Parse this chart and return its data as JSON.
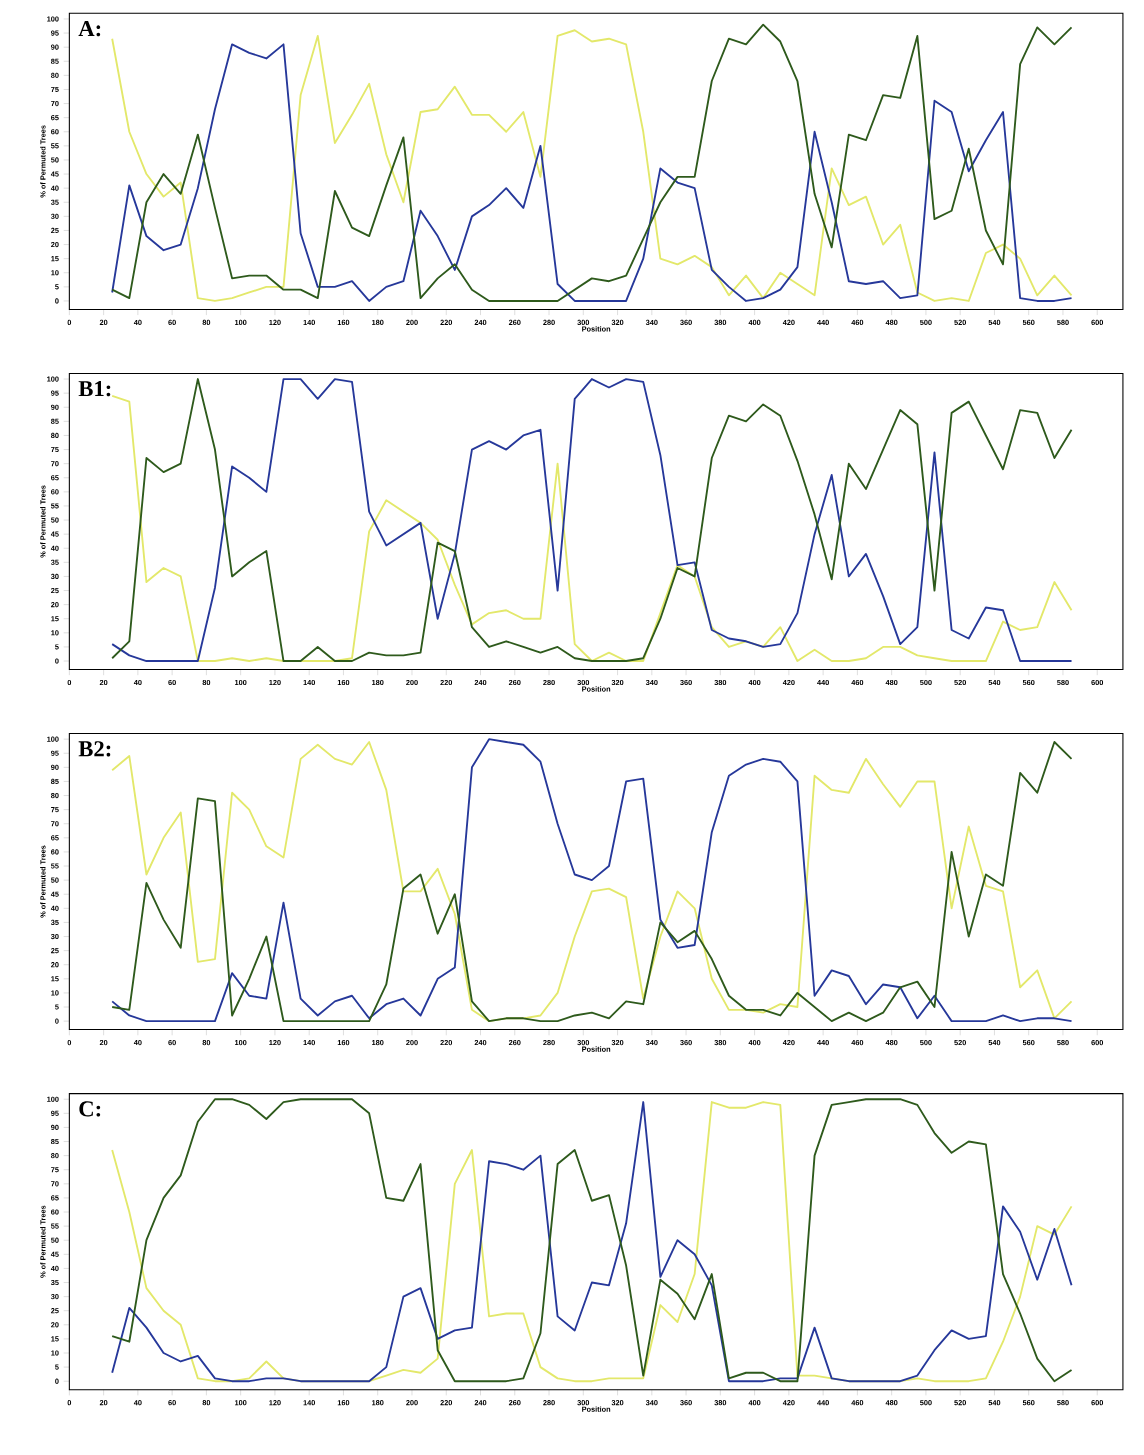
{
  "chart_data": [
    {
      "type": "line",
      "title": "A:",
      "xlabel": "Position",
      "ylabel": "% of Permuted Trees",
      "xlim": [
        0,
        615
      ],
      "ylim": [
        -3,
        102
      ],
      "xticks": [
        0,
        20,
        40,
        60,
        80,
        100,
        120,
        140,
        160,
        180,
        200,
        220,
        240,
        260,
        280,
        300,
        320,
        340,
        360,
        380,
        400,
        420,
        440,
        460,
        480,
        500,
        520,
        540,
        560,
        580,
        600
      ],
      "yticks": [
        0,
        5,
        10,
        15,
        20,
        25,
        30,
        35,
        40,
        45,
        50,
        55,
        60,
        65,
        70,
        75,
        80,
        85,
        90,
        95,
        100
      ],
      "x": [
        25,
        35,
        45,
        55,
        65,
        75,
        85,
        95,
        105,
        115,
        125,
        135,
        145,
        155,
        165,
        175,
        185,
        195,
        205,
        215,
        225,
        235,
        245,
        255,
        265,
        275,
        285,
        295,
        305,
        315,
        325,
        335,
        345,
        355,
        365,
        375,
        385,
        395,
        405,
        415,
        425,
        435,
        445,
        455,
        465,
        475,
        485,
        495,
        505,
        515,
        525,
        535,
        545,
        555,
        565,
        575,
        585
      ],
      "series": [
        {
          "color": "#e3e86a",
          "values": [
            93,
            60,
            45,
            37,
            42,
            1,
            0,
            1,
            3,
            5,
            5,
            73,
            94,
            56,
            66,
            77,
            52,
            35,
            67,
            68,
            76,
            66,
            66,
            60,
            67,
            44,
            94,
            96,
            92,
            93,
            91,
            60,
            15,
            13,
            16,
            12,
            2,
            9,
            1,
            10,
            6,
            2,
            47,
            34,
            37,
            20,
            27,
            3,
            0,
            1,
            0,
            17,
            20,
            15,
            2,
            9,
            2
          ]
        },
        {
          "color": "#26389a",
          "values": [
            3,
            41,
            23,
            18,
            20,
            40,
            68,
            91,
            88,
            86,
            91,
            24,
            5,
            5,
            7,
            0,
            5,
            7,
            32,
            23,
            11,
            30,
            34,
            40,
            33,
            55,
            6,
            0,
            0,
            0,
            0,
            15,
            47,
            42,
            40,
            11,
            5,
            0,
            1,
            4,
            12,
            60,
            35,
            7,
            6,
            7,
            1,
            2,
            71,
            67,
            46,
            57,
            67,
            1,
            0,
            0,
            1
          ]
        },
        {
          "color": "#2e5a1c",
          "values": [
            4,
            1,
            35,
            45,
            38,
            59,
            33,
            8,
            9,
            9,
            4,
            4,
            1,
            39,
            26,
            23,
            41,
            58,
            1,
            8,
            13,
            4,
            0,
            0,
            0,
            0,
            0,
            4,
            8,
            7,
            9,
            22,
            35,
            44,
            44,
            78,
            93,
            91,
            98,
            92,
            78,
            38,
            19,
            59,
            57,
            73,
            72,
            94,
            29,
            32,
            54,
            25,
            13,
            84,
            97,
            91,
            97
          ]
        }
      ]
    },
    {
      "type": "line",
      "title": "B1:",
      "xlabel": "Position",
      "ylabel": "% of Permuted Trees",
      "xlim": [
        0,
        615
      ],
      "ylim": [
        -3,
        102
      ],
      "xticks": [
        0,
        20,
        40,
        60,
        80,
        100,
        120,
        140,
        160,
        180,
        200,
        220,
        240,
        260,
        280,
        300,
        320,
        340,
        360,
        380,
        400,
        420,
        440,
        460,
        480,
        500,
        520,
        540,
        560,
        580,
        600
      ],
      "yticks": [
        0,
        5,
        10,
        15,
        20,
        25,
        30,
        35,
        40,
        45,
        50,
        55,
        60,
        65,
        70,
        75,
        80,
        85,
        90,
        95,
        100
      ],
      "x": [
        25,
        35,
        45,
        55,
        65,
        75,
        85,
        95,
        105,
        115,
        125,
        135,
        145,
        155,
        165,
        175,
        185,
        195,
        205,
        215,
        225,
        235,
        245,
        255,
        265,
        275,
        285,
        295,
        305,
        315,
        325,
        335,
        345,
        355,
        365,
        375,
        385,
        395,
        405,
        415,
        425,
        435,
        445,
        455,
        465,
        475,
        485,
        495,
        505,
        515,
        525,
        535,
        545,
        555,
        565,
        575,
        585
      ],
      "series": [
        {
          "color": "#e3e86a",
          "values": [
            94,
            92,
            28,
            33,
            30,
            0,
            0,
            1,
            0,
            1,
            0,
            0,
            0,
            0,
            1,
            46,
            57,
            53,
            49,
            43,
            27,
            13,
            17,
            18,
            15,
            15,
            70,
            6,
            0,
            3,
            0,
            0,
            17,
            34,
            30,
            12,
            5,
            7,
            5,
            12,
            0,
            4,
            0,
            0,
            1,
            5,
            5,
            2,
            1,
            0,
            0,
            0,
            14,
            11,
            12,
            28,
            18
          ]
        },
        {
          "color": "#26389a",
          "values": [
            6,
            2,
            0,
            0,
            0,
            0,
            26,
            69,
            65,
            60,
            100,
            100,
            93,
            100,
            99,
            53,
            41,
            45,
            49,
            15,
            38,
            75,
            78,
            75,
            80,
            82,
            25,
            93,
            100,
            97,
            100,
            99,
            73,
            34,
            35,
            11,
            8,
            7,
            5,
            6,
            17,
            45,
            66,
            30,
            38,
            23,
            6,
            12,
            74,
            11,
            8,
            19,
            18,
            0,
            0,
            0,
            0
          ]
        },
        {
          "color": "#2e5a1c",
          "values": [
            1,
            7,
            72,
            67,
            70,
            100,
            75,
            30,
            35,
            39,
            0,
            0,
            5,
            0,
            0,
            3,
            2,
            2,
            3,
            42,
            39,
            12,
            5,
            7,
            5,
            3,
            5,
            1,
            0,
            0,
            0,
            1,
            15,
            33,
            30,
            72,
            87,
            85,
            91,
            87,
            71,
            52,
            29,
            70,
            61,
            75,
            89,
            84,
            25,
            88,
            92,
            80,
            68,
            89,
            88,
            72,
            82
          ]
        }
      ]
    },
    {
      "type": "line",
      "title": "B2:",
      "xlabel": "Position",
      "ylabel": "% of Permuted Trees",
      "xlim": [
        0,
        615
      ],
      "ylim": [
        -3,
        102
      ],
      "xticks": [
        0,
        20,
        40,
        60,
        80,
        100,
        120,
        140,
        160,
        180,
        200,
        220,
        240,
        260,
        280,
        300,
        320,
        340,
        360,
        380,
        400,
        420,
        440,
        460,
        480,
        500,
        520,
        540,
        560,
        580,
        600
      ],
      "yticks": [
        0,
        5,
        10,
        15,
        20,
        25,
        30,
        35,
        40,
        45,
        50,
        55,
        60,
        65,
        70,
        75,
        80,
        85,
        90,
        95,
        100
      ],
      "x": [
        25,
        35,
        45,
        55,
        65,
        75,
        85,
        95,
        105,
        115,
        125,
        135,
        145,
        155,
        165,
        175,
        185,
        195,
        205,
        215,
        225,
        235,
        245,
        255,
        265,
        275,
        285,
        295,
        305,
        315,
        325,
        335,
        345,
        355,
        365,
        375,
        385,
        395,
        405,
        415,
        425,
        435,
        445,
        455,
        465,
        475,
        485,
        495,
        505,
        515,
        525,
        535,
        545,
        555,
        565,
        575,
        585
      ],
      "series": [
        {
          "color": "#e3e86a",
          "values": [
            89,
            94,
            52,
            65,
            74,
            21,
            22,
            81,
            75,
            62,
            58,
            93,
            98,
            93,
            91,
            99,
            82,
            46,
            46,
            54,
            38,
            4,
            0,
            1,
            1,
            2,
            10,
            30,
            46,
            47,
            44,
            8,
            30,
            46,
            40,
            15,
            4,
            4,
            3,
            6,
            5,
            87,
            82,
            81,
            93,
            84,
            76,
            85,
            85,
            40,
            69,
            48,
            46,
            12,
            18,
            1,
            7
          ]
        },
        {
          "color": "#26389a",
          "values": [
            7,
            2,
            0,
            0,
            0,
            0,
            0,
            17,
            9,
            8,
            42,
            8,
            2,
            7,
            9,
            1,
            6,
            8,
            2,
            15,
            19,
            90,
            100,
            99,
            98,
            92,
            70,
            52,
            50,
            55,
            85,
            86,
            36,
            26,
            27,
            67,
            87,
            91,
            93,
            92,
            85,
            9,
            18,
            16,
            6,
            13,
            12,
            1,
            9,
            0,
            0,
            0,
            2,
            0,
            1,
            1,
            0
          ]
        },
        {
          "color": "#2e5a1c",
          "values": [
            5,
            4,
            49,
            36,
            26,
            79,
            78,
            2,
            15,
            30,
            0,
            0,
            0,
            0,
            0,
            0,
            13,
            47,
            52,
            31,
            45,
            7,
            0,
            1,
            1,
            0,
            0,
            2,
            3,
            1,
            7,
            6,
            35,
            28,
            32,
            22,
            9,
            4,
            4,
            2,
            10,
            5,
            0,
            3,
            0,
            3,
            12,
            14,
            5,
            60,
            30,
            52,
            48,
            88,
            81,
            99,
            93
          ]
        }
      ]
    },
    {
      "type": "line",
      "title": "C:",
      "xlabel": "Position",
      "ylabel": "% of Permuted Trees",
      "xlim": [
        0,
        615
      ],
      "ylim": [
        -3,
        102
      ],
      "xticks": [
        0,
        20,
        40,
        60,
        80,
        100,
        120,
        140,
        160,
        180,
        200,
        220,
        240,
        260,
        280,
        300,
        320,
        340,
        360,
        380,
        400,
        420,
        440,
        460,
        480,
        500,
        520,
        540,
        560,
        580,
        600
      ],
      "yticks": [
        0,
        5,
        10,
        15,
        20,
        25,
        30,
        35,
        40,
        45,
        50,
        55,
        60,
        65,
        70,
        75,
        80,
        85,
        90,
        95,
        100
      ],
      "x": [
        25,
        35,
        45,
        55,
        65,
        75,
        85,
        95,
        105,
        115,
        125,
        135,
        145,
        155,
        165,
        175,
        185,
        195,
        205,
        215,
        225,
        235,
        245,
        255,
        265,
        275,
        285,
        295,
        305,
        315,
        325,
        335,
        345,
        355,
        365,
        375,
        385,
        395,
        405,
        415,
        425,
        435,
        445,
        455,
        465,
        475,
        485,
        495,
        505,
        515,
        525,
        535,
        545,
        555,
        565,
        575,
        585
      ],
      "series": [
        {
          "color": "#e3e86a",
          "values": [
            82,
            60,
            33,
            25,
            20,
            1,
            0,
            0,
            1,
            7,
            1,
            0,
            0,
            0,
            0,
            0,
            2,
            4,
            3,
            8,
            70,
            82,
            23,
            24,
            24,
            5,
            1,
            0,
            0,
            1,
            1,
            1,
            27,
            21,
            38,
            99,
            97,
            97,
            99,
            98,
            2,
            2,
            1,
            0,
            0,
            0,
            0,
            1,
            0,
            0,
            0,
            1,
            14,
            30,
            55,
            52,
            62
          ]
        },
        {
          "color": "#26389a",
          "values": [
            3,
            26,
            19,
            10,
            7,
            9,
            1,
            0,
            0,
            1,
            1,
            0,
            0,
            0,
            0,
            0,
            5,
            30,
            33,
            15,
            18,
            19,
            78,
            77,
            75,
            80,
            23,
            18,
            35,
            34,
            56,
            99,
            37,
            50,
            45,
            34,
            0,
            0,
            0,
            1,
            1,
            19,
            1,
            0,
            0,
            0,
            0,
            2,
            11,
            18,
            15,
            16,
            62,
            53,
            36,
            54,
            34
          ]
        },
        {
          "color": "#2e5a1c",
          "values": [
            16,
            14,
            50,
            65,
            73,
            92,
            100,
            100,
            98,
            93,
            99,
            100,
            100,
            100,
            100,
            95,
            65,
            64,
            77,
            11,
            0,
            0,
            0,
            0,
            1,
            17,
            77,
            82,
            64,
            66,
            41,
            2,
            36,
            31,
            22,
            38,
            1,
            3,
            3,
            0,
            0,
            80,
            98,
            99,
            100,
            100,
            100,
            98,
            88,
            81,
            85,
            84,
            38,
            24,
            8,
            0,
            4
          ]
        }
      ]
    }
  ]
}
